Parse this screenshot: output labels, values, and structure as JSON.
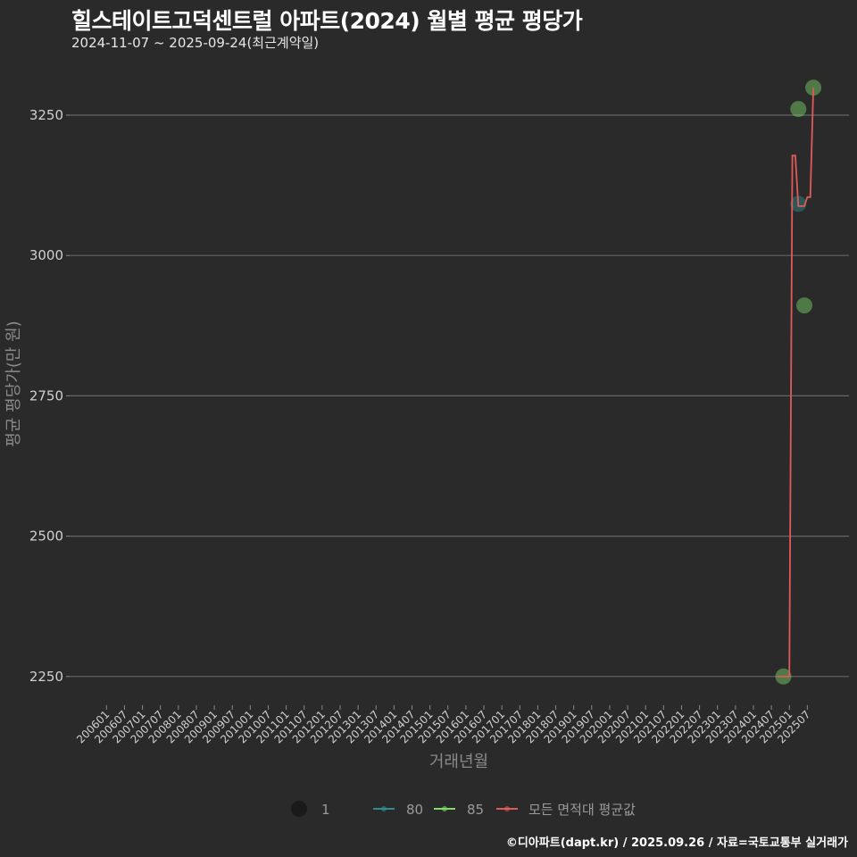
{
  "header": {
    "title": "힐스테이트고덕센트럴 아파트(2024) 월별 평균 평당가",
    "subtitle": "2024-11-07 ~ 2025-09-24(최근계약일)"
  },
  "footer": {
    "credit": "©디아파트(dapt.kr) / 2025.09.26 / 자료=국토교통부 실거래가"
  },
  "colors": {
    "background": "#2a2a2a",
    "grid": "#666666",
    "area_80": "#2f8f8f",
    "area_85": "#7ddc6a",
    "average_line": "#e05a5a",
    "size_legend": "#1a1a1a"
  },
  "chart_data": {
    "type": "line",
    "title": "힐스테이트고덕센트럴 아파트(2024) 월별 평균 평당가",
    "subtitle": "2024-11-07 ~ 2025-09-24(최근계약일)",
    "xlabel": "거래년월",
    "ylabel": "평균 평당가(만 원)",
    "ylim": [
      2200,
      3330
    ],
    "yticks": [
      2250,
      2500,
      2750,
      3000,
      3250
    ],
    "grid": true,
    "legend_position": "bottom",
    "xticks": [
      "200601",
      "200607",
      "200701",
      "200707",
      "200801",
      "200807",
      "200901",
      "200907",
      "201001",
      "201007",
      "201101",
      "201107",
      "201201",
      "201207",
      "201301",
      "201307",
      "201401",
      "201407",
      "201501",
      "201507",
      "201601",
      "201607",
      "201701",
      "201707",
      "201801",
      "201807",
      "201901",
      "201907",
      "202001",
      "202007",
      "202101",
      "202107",
      "202201",
      "202207",
      "202301",
      "202307",
      "202401",
      "202407",
      "202501",
      "202507"
    ],
    "legend": [
      {
        "type": "size",
        "label": "1"
      },
      {
        "type": "series",
        "label": "80",
        "color_key": "area_80"
      },
      {
        "type": "series",
        "label": "85",
        "color_key": "area_85"
      },
      {
        "type": "series",
        "label": "모든 면적대 평균값",
        "color_key": "average_line"
      }
    ],
    "series": [
      {
        "name": "80",
        "kind": "points",
        "color_key": "area_80",
        "points": [
          {
            "x": "2025-04",
            "y": 3092
          }
        ]
      },
      {
        "name": "85",
        "kind": "points",
        "color_key": "area_85",
        "points": [
          {
            "x": "2024-11",
            "y": 2250
          },
          {
            "x": "2025-04",
            "y": 3261
          },
          {
            "x": "2025-06",
            "y": 2911
          },
          {
            "x": "2025-09",
            "y": 3299
          }
        ]
      },
      {
        "name": "모든 면적대 평균값",
        "kind": "line",
        "color_key": "average_line",
        "points": [
          {
            "x": "2024-09",
            "y": 2250
          },
          {
            "x": "2025-01",
            "y": 2250
          },
          {
            "x": "2025-02",
            "y": 3178
          },
          {
            "x": "2025-03",
            "y": 3178
          },
          {
            "x": "2025-04",
            "y": 3088
          },
          {
            "x": "2025-06",
            "y": 3088
          },
          {
            "x": "2025-07",
            "y": 3104
          },
          {
            "x": "2025-08",
            "y": 3104
          },
          {
            "x": "2025-09",
            "y": 3299
          }
        ]
      }
    ]
  }
}
